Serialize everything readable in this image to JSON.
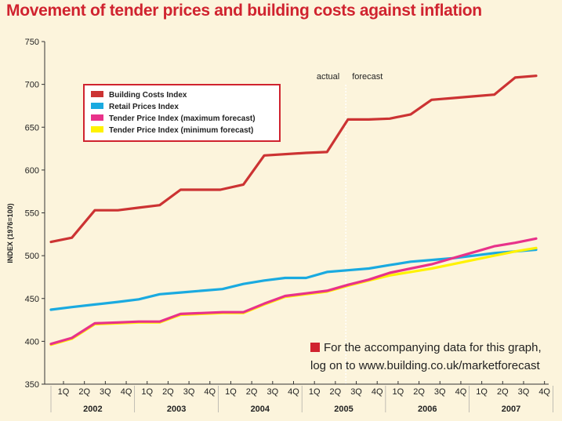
{
  "title": "Movement of tender prices and building costs against inflation",
  "colors": {
    "background": "#fcf4dc",
    "title": "#d0232f",
    "axis": "#333333",
    "building_costs": "#cc3333",
    "retail_prices": "#1aaae0",
    "tender_max": "#e8328a",
    "tender_min": "#fff200",
    "note_square": "#d0232f"
  },
  "annotations": {
    "actual": "actual",
    "forecast": "forecast",
    "note_line1": "For the accompanying data for this graph,",
    "note_line2": "log on to www.building.co.uk/marketforecast"
  },
  "chart_data": {
    "type": "line",
    "ylabel": "INDEX (1976=100)",
    "xlabel": "",
    "ylim": [
      350,
      750
    ],
    "yticks": [
      350,
      400,
      450,
      500,
      550,
      600,
      650,
      700,
      750
    ],
    "quarter_ticks": [
      "1Q",
      "2Q",
      "3Q",
      "4Q",
      "1Q",
      "2Q",
      "3Q",
      "4Q",
      "1Q",
      "2Q",
      "3Q",
      "4Q",
      "1Q",
      "2Q",
      "3Q",
      "4Q",
      "1Q",
      "2Q",
      "3Q",
      "4Q",
      "1Q",
      "2Q",
      "3Q",
      "4Q"
    ],
    "years": [
      "2002",
      "2003",
      "2004",
      "2005",
      "2006",
      "2007"
    ],
    "x_range": [
      -0.9,
      23.2
    ],
    "actual_forecast_boundary": 13.5,
    "legend_position": "top-left",
    "series": [
      {
        "name": "Building Costs Index",
        "color": "#cc3333",
        "x": [
          -0.6,
          0.4,
          1.5,
          2.6,
          3.6,
          4.6,
          5.6,
          6.6,
          7.5,
          8.6,
          9.6,
          11.6,
          12.6,
          13.6,
          14.6,
          15.6,
          16.6,
          17.6,
          18.6,
          19.6,
          20.6,
          21.6,
          22.6
        ],
        "values": [
          516,
          521,
          553,
          553,
          556,
          559,
          577,
          577,
          577,
          583,
          617,
          620,
          621,
          659,
          659,
          660,
          665,
          682,
          684,
          686,
          688,
          708,
          710
        ]
      },
      {
        "name": "Retail Prices Index",
        "color": "#1aaae0",
        "x": [
          -0.6,
          0.4,
          1.5,
          2.6,
          3.6,
          4.6,
          5.6,
          6.6,
          7.6,
          8.6,
          9.6,
          10.6,
          11.6,
          12.6,
          13.6,
          14.6,
          15.6,
          16.6,
          17.6,
          18.6,
          19.6,
          20.6,
          21.6,
          22.6
        ],
        "values": [
          437,
          440,
          443,
          446,
          449,
          455,
          457,
          459,
          461,
          467,
          471,
          474,
          474,
          481,
          483,
          485,
          489,
          493,
          495,
          497,
          500,
          503,
          505,
          507
        ]
      },
      {
        "name": "Tender Price Index (maximum forecast)",
        "color": "#e8328a",
        "x": [
          -0.6,
          0.4,
          1.5,
          2.6,
          3.6,
          4.6,
          5.6,
          6.6,
          7.6,
          8.6,
          9.6,
          10.6,
          11.6,
          12.6,
          13.6,
          14.6,
          15.6,
          16.6,
          17.6,
          18.6,
          19.6,
          20.6,
          21.6,
          22.6
        ],
        "values": [
          397,
          404,
          421,
          422,
          423,
          423,
          432,
          433,
          434,
          434,
          444,
          453,
          456,
          459,
          466,
          472,
          480,
          485,
          490,
          497,
          504,
          511,
          515,
          520
        ]
      },
      {
        "name": "Tender Price Index (minimum forecast)",
        "color": "#fff200",
        "x": [
          -0.6,
          0.4,
          1.5,
          2.6,
          3.6,
          4.6,
          5.6,
          6.6,
          7.6,
          8.6,
          9.6,
          10.6,
          11.6,
          12.6,
          13.6,
          14.6,
          15.6,
          16.6,
          17.6,
          18.6,
          19.6,
          20.6,
          21.6,
          22.6
        ],
        "values": [
          396,
          403,
          420,
          421,
          422,
          422,
          431,
          432,
          433,
          433,
          443,
          452,
          455,
          458,
          465,
          471,
          477,
          481,
          485,
          490,
          495,
          500,
          505,
          509
        ]
      }
    ]
  }
}
